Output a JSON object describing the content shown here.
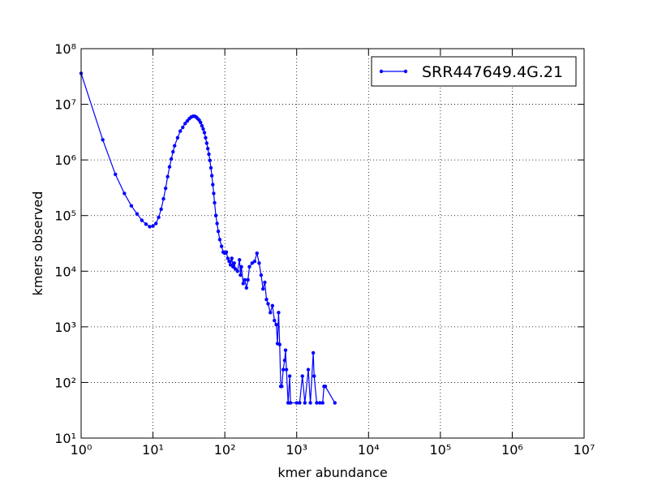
{
  "chart_data": {
    "type": "line",
    "xlabel": "kmer abundance",
    "ylabel": "kmers observed",
    "log_x": true,
    "log_y": true,
    "grid": true,
    "legend": "upper right",
    "xlim": [
      1,
      10000000
    ],
    "ylim": [
      10,
      100000000
    ],
    "xticks": [
      {
        "value": 1,
        "label": "10⁰"
      },
      {
        "value": 10,
        "label": "10¹"
      },
      {
        "value": 100,
        "label": "10²"
      },
      {
        "value": 1000,
        "label": "10³"
      },
      {
        "value": 10000,
        "label": "10⁴"
      },
      {
        "value": 100000,
        "label": "10⁵"
      },
      {
        "value": 1000000,
        "label": "10⁶"
      },
      {
        "value": 10000000,
        "label": "10⁷"
      }
    ],
    "yticks": [
      {
        "value": 10,
        "label": "10¹"
      },
      {
        "value": 100,
        "label": "10²"
      },
      {
        "value": 1000,
        "label": "10³"
      },
      {
        "value": 10000,
        "label": "10⁴"
      },
      {
        "value": 100000,
        "label": "10⁵"
      },
      {
        "value": 1000000,
        "label": "10⁶"
      },
      {
        "value": 10000000,
        "label": "10⁷"
      },
      {
        "value": 100000000,
        "label": "10⁸"
      }
    ],
    "x": [
      1,
      2,
      3,
      4,
      5,
      6,
      7,
      8,
      9,
      10,
      11,
      12,
      13,
      14,
      15,
      16,
      17,
      18,
      19,
      20,
      22,
      24,
      26,
      28,
      30,
      32,
      34,
      36,
      38,
      40,
      42,
      44,
      46,
      48,
      50,
      52,
      54,
      56,
      58,
      60,
      62,
      64,
      66,
      68,
      70,
      72,
      75,
      78,
      81,
      85,
      90,
      95,
      100,
      105,
      110,
      115,
      120,
      125,
      130,
      135,
      140,
      150,
      160,
      165,
      170,
      180,
      190,
      200,
      210,
      220,
      240,
      260,
      280,
      300,
      320,
      340,
      360,
      380,
      400,
      430,
      460,
      490,
      520,
      540,
      560,
      580,
      600,
      620,
      650,
      680,
      700,
      720,
      760,
      800,
      820,
      1000,
      1100,
      1200,
      1300,
      1450,
      1550,
      1700,
      1750,
      1900,
      2100,
      2300,
      2400,
      2500,
      3400
    ],
    "series": [
      {
        "name": "SRR447649.4G.21",
        "color": "#0000ff",
        "values": [
          36000000,
          2300000,
          550000,
          250000,
          150000,
          107000,
          82000,
          70000,
          63000,
          65000,
          72000,
          93000,
          130000,
          200000,
          310000,
          500000,
          750000,
          1040000,
          1400000,
          1800000,
          2500000,
          3300000,
          3850000,
          4500000,
          5000000,
          5500000,
          5900000,
          6100000,
          6100000,
          5900000,
          5500000,
          5200000,
          4700000,
          4100000,
          3600000,
          3100000,
          2500000,
          2000000,
          1600000,
          1270000,
          980000,
          720000,
          520000,
          360000,
          250000,
          170000,
          100000,
          72000,
          52000,
          37000,
          28000,
          22000,
          21000,
          22000,
          17000,
          15000,
          13000,
          17000,
          12000,
          14000,
          11000,
          10000,
          16000,
          8500,
          12000,
          6000,
          7000,
          5000,
          7000,
          12000,
          14000,
          15000,
          21000,
          14000,
          8500,
          4800,
          6300,
          3100,
          2600,
          1800,
          2400,
          1300,
          1100,
          500,
          1800,
          480,
          85,
          85,
          170,
          250,
          380,
          170,
          43,
          130,
          43,
          43,
          43,
          130,
          43,
          170,
          43,
          340,
          130,
          43,
          43,
          43,
          85,
          85,
          43
        ]
      }
    ]
  }
}
